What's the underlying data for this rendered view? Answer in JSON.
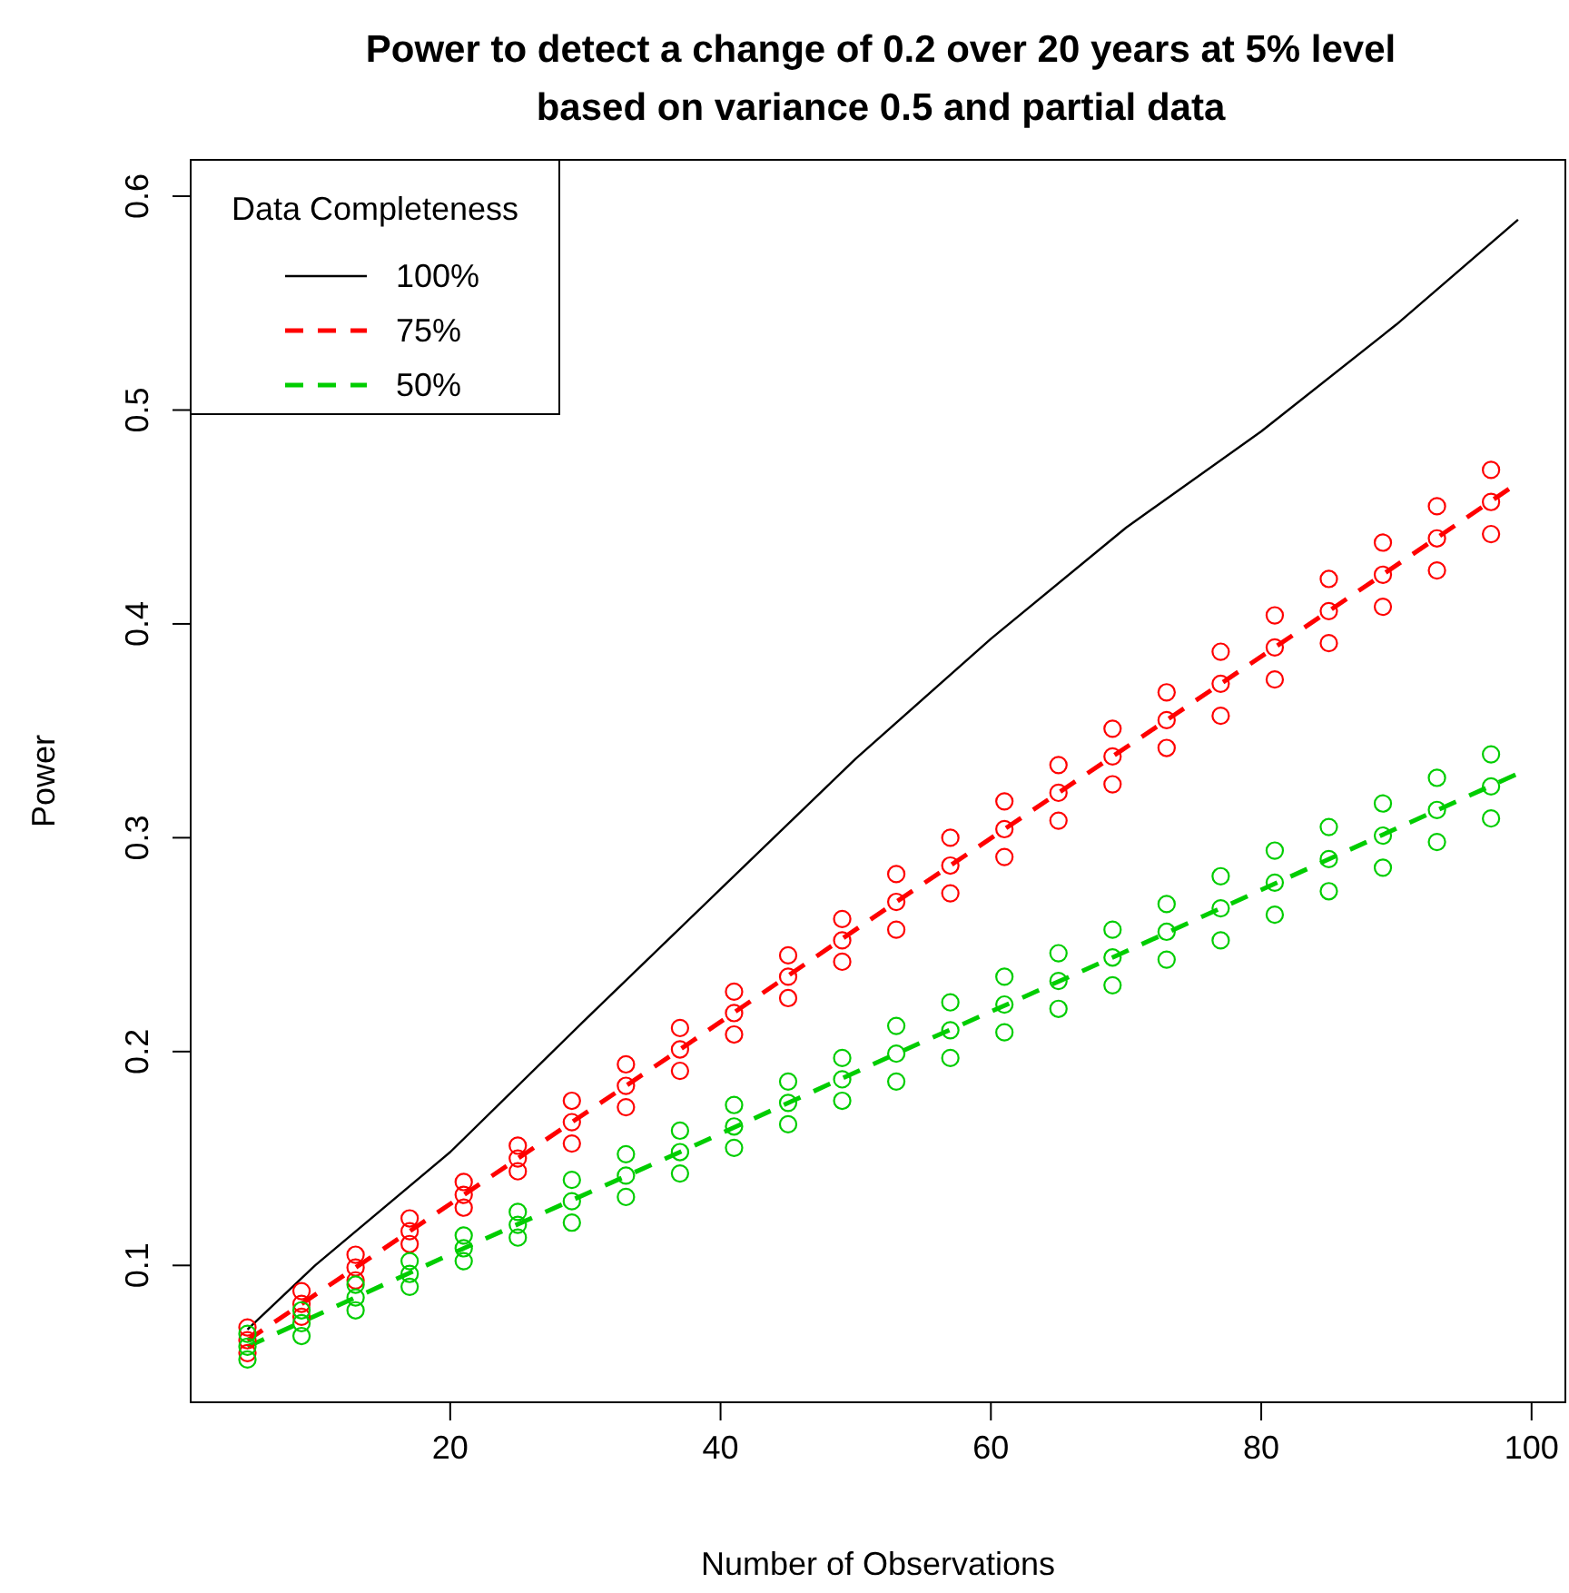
{
  "chart_data": {
    "type": "scatter",
    "title": "Power to detect a change of 0.2 over 20 years at 5% level\nbased on variance 0.5 and partial data",
    "xlabel": "Number of Observations",
    "ylabel": "Power",
    "legend_title": "Data Completeness",
    "legend": "top left",
    "grid": false,
    "xlim": [
      0.8,
      102.5
    ],
    "ylim": [
      0.036,
      0.617
    ],
    "xticks": [
      20,
      40,
      60,
      80,
      100
    ],
    "yticks": [
      0.1,
      0.2,
      0.3,
      0.4,
      0.5,
      0.6
    ],
    "series": [
      {
        "name": "100%",
        "type": "line",
        "color": "#000000",
        "line_style": "solid",
        "marker": "none",
        "x": [
          5,
          10,
          20,
          30,
          40,
          50,
          60,
          70,
          80,
          90,
          99
        ],
        "values": [
          0.07,
          0.1,
          0.153,
          0.215,
          0.276,
          0.337,
          0.393,
          0.445,
          0.49,
          0.54,
          0.589
        ]
      },
      {
        "name": "75%",
        "type": "line",
        "color": "#ff0000",
        "line_style": "dashed",
        "marker": "none",
        "x": [
          5,
          21,
          37,
          53,
          69,
          85,
          99
        ],
        "values": [
          0.065,
          0.133,
          0.201,
          0.27,
          0.338,
          0.406,
          0.466
        ]
      },
      {
        "name": "50%",
        "type": "line",
        "color": "#00cd00",
        "line_style": "dashed",
        "marker": "none",
        "x": [
          5,
          21,
          37,
          53,
          69,
          85,
          99
        ],
        "values": [
          0.062,
          0.108,
          0.153,
          0.199,
          0.244,
          0.29,
          0.33
        ]
      },
      {
        "color": "#ff0000",
        "marker": "circle",
        "x": [
          5,
          5,
          5,
          9,
          9,
          9,
          13,
          13,
          13,
          17,
          17,
          17,
          21,
          21,
          21,
          25,
          25,
          25,
          29,
          29,
          29,
          33,
          33,
          33,
          37,
          37,
          37,
          41,
          41,
          41,
          45,
          45,
          45,
          49,
          49,
          49,
          53,
          53,
          53,
          57,
          57,
          57,
          61,
          61,
          61,
          65,
          65,
          65,
          69,
          69,
          69,
          73,
          73,
          73,
          77,
          77,
          77,
          81,
          81,
          81,
          85,
          85,
          85,
          89,
          89,
          89,
          93,
          93,
          93,
          97,
          97,
          97
        ],
        "values": [
          0.059,
          0.065,
          0.071,
          0.076,
          0.082,
          0.088,
          0.093,
          0.099,
          0.105,
          0.11,
          0.116,
          0.122,
          0.127,
          0.133,
          0.139,
          0.144,
          0.15,
          0.156,
          0.157,
          0.167,
          0.177,
          0.174,
          0.184,
          0.194,
          0.191,
          0.201,
          0.211,
          0.208,
          0.218,
          0.228,
          0.225,
          0.235,
          0.245,
          0.242,
          0.252,
          0.262,
          0.257,
          0.27,
          0.283,
          0.274,
          0.287,
          0.3,
          0.291,
          0.304,
          0.317,
          0.308,
          0.321,
          0.334,
          0.325,
          0.338,
          0.351,
          0.342,
          0.355,
          0.368,
          0.357,
          0.372,
          0.387,
          0.374,
          0.389,
          0.404,
          0.391,
          0.406,
          0.421,
          0.408,
          0.423,
          0.438,
          0.425,
          0.44,
          0.455,
          0.442,
          0.457,
          0.472
        ]
      },
      {
        "color": "#00cd00",
        "marker": "circle",
        "x": [
          5,
          5,
          5,
          9,
          9,
          9,
          13,
          13,
          13,
          17,
          17,
          17,
          21,
          21,
          21,
          25,
          25,
          25,
          29,
          29,
          29,
          33,
          33,
          33,
          37,
          37,
          37,
          41,
          41,
          41,
          45,
          45,
          45,
          49,
          49,
          49,
          53,
          53,
          53,
          57,
          57,
          57,
          61,
          61,
          61,
          65,
          65,
          65,
          69,
          69,
          69,
          73,
          73,
          73,
          77,
          77,
          77,
          81,
          81,
          81,
          85,
          85,
          85,
          89,
          89,
          89,
          93,
          93,
          93,
          97,
          97,
          97
        ],
        "values": [
          0.056,
          0.062,
          0.068,
          0.067,
          0.073,
          0.079,
          0.079,
          0.085,
          0.091,
          0.09,
          0.096,
          0.102,
          0.102,
          0.108,
          0.114,
          0.113,
          0.119,
          0.125,
          0.12,
          0.13,
          0.14,
          0.132,
          0.142,
          0.152,
          0.143,
          0.153,
          0.163,
          0.155,
          0.165,
          0.175,
          0.166,
          0.176,
          0.186,
          0.177,
          0.187,
          0.197,
          0.186,
          0.199,
          0.212,
          0.197,
          0.21,
          0.223,
          0.209,
          0.222,
          0.235,
          0.22,
          0.233,
          0.246,
          0.231,
          0.244,
          0.257,
          0.243,
          0.256,
          0.269,
          0.252,
          0.267,
          0.282,
          0.264,
          0.279,
          0.294,
          0.275,
          0.29,
          0.305,
          0.286,
          0.301,
          0.316,
          0.298,
          0.313,
          0.328,
          0.309,
          0.324,
          0.339
        ]
      }
    ]
  }
}
